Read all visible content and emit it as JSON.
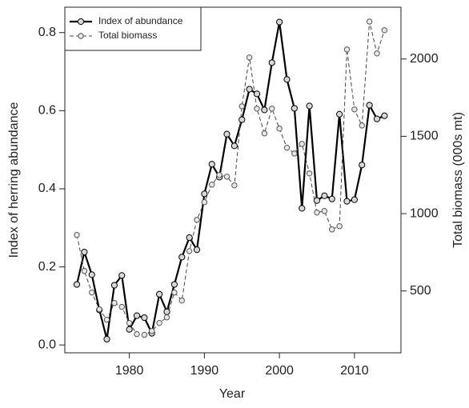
{
  "chart_data": {
    "type": "line",
    "x_label": "Year",
    "y_label": "Index of herring abundance",
    "y2_label": "Total biomass (000s mt)",
    "x": [
      1973,
      1974,
      1975,
      1976,
      1977,
      1978,
      1979,
      1980,
      1981,
      1982,
      1983,
      1984,
      1985,
      1986,
      1987,
      1988,
      1989,
      1990,
      1991,
      1992,
      1993,
      1994,
      1995,
      1996,
      1997,
      1998,
      1999,
      2000,
      2001,
      2002,
      2003,
      2004,
      2005,
      2006,
      2007,
      2008,
      2009,
      2010,
      2011,
      2012,
      2013,
      2014
    ],
    "series": [
      {
        "name": "Index of abundance",
        "color": "#000000",
        "line_style": "solid",
        "axis": "y",
        "values": [
          0.155,
          0.238,
          0.18,
          0.09,
          0.015,
          0.153,
          0.178,
          0.04,
          0.075,
          0.07,
          0.03,
          0.13,
          0.085,
          0.155,
          0.225,
          0.275,
          0.244,
          0.387,
          0.463,
          0.43,
          0.54,
          0.51,
          0.577,
          0.655,
          0.643,
          0.602,
          0.723,
          0.827,
          0.68,
          0.606,
          0.35,
          0.612,
          0.37,
          0.382,
          0.374,
          0.591,
          0.368,
          0.372,
          0.461,
          0.614,
          0.579,
          0.587
        ]
      },
      {
        "name": "Total biomass",
        "color": "#444444",
        "line_style": "dashed",
        "axis": "y2",
        "values": [
          862,
          629,
          490,
          381,
          314,
          422,
          397,
          293,
          221,
          216,
          241,
          293,
          329,
          490,
          438,
          758,
          960,
          1074,
          1188,
          1250,
          1239,
          1183,
          1694,
          2010,
          1679,
          1519,
          1679,
          1550,
          1426,
          1389,
          1451,
          1260,
          1007,
          1017,
          898,
          919,
          2062,
          1674,
          1570,
          2242,
          2036,
          2186
        ]
      }
    ],
    "xlim": [
      1971.4,
      2016.2
    ],
    "xticks": [
      1980,
      1990,
      2000,
      2010
    ],
    "ylim": [
      -0.02,
      0.865
    ],
    "yticks": [
      {
        "value": 0,
        "label": "0.0"
      },
      0.2,
      0.4,
      0.6,
      0.8
    ],
    "y2lim": [
      100,
      2335
    ],
    "y2ticks": [
      500,
      1000,
      1500,
      2000
    ],
    "legend": "top-left"
  }
}
